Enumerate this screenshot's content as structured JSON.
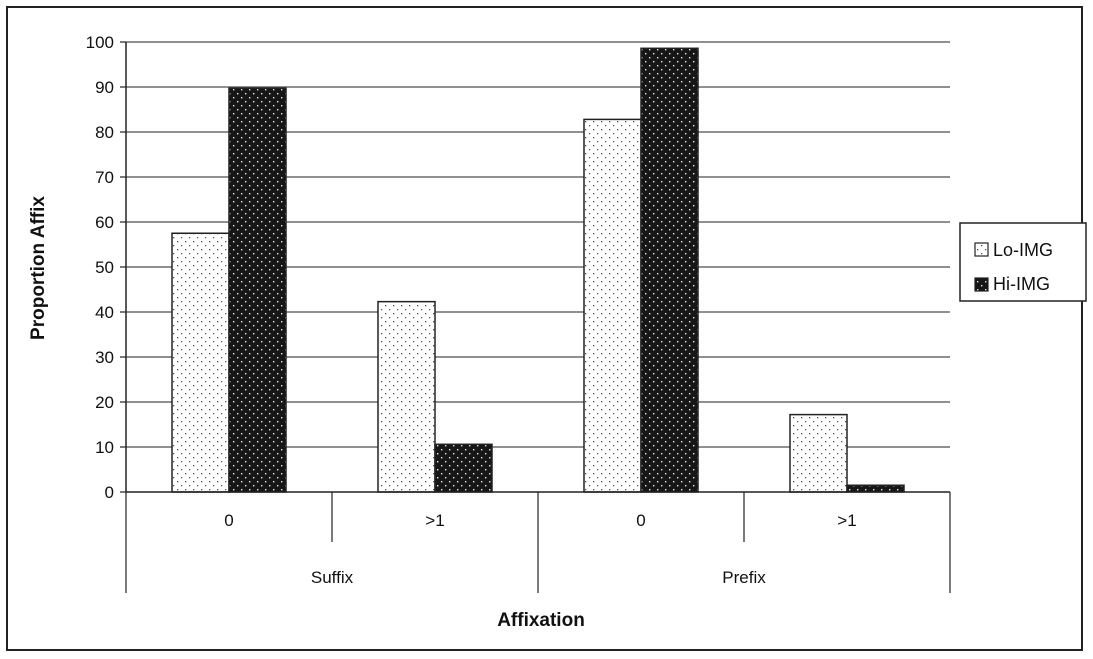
{
  "chart_data": {
    "type": "bar",
    "title": "",
    "xlabel": "Affixation",
    "ylabel": "Proportion Affix",
    "ylim": [
      0,
      100
    ],
    "yticks": [
      0,
      10,
      20,
      30,
      40,
      50,
      60,
      70,
      80,
      90,
      100
    ],
    "grid": true,
    "legend_position": "right",
    "categories": [
      "0",
      ">1",
      "0",
      ">1"
    ],
    "groups": [
      {
        "label": "Suffix",
        "categories": [
          "0",
          ">1"
        ]
      },
      {
        "label": "Prefix",
        "categories": [
          "0",
          ">1"
        ]
      }
    ],
    "series": [
      {
        "name": "Lo-IMG",
        "values": [
          57.5,
          42.3,
          82.8,
          17.2
        ],
        "pattern": "light-dots",
        "color": "#ffffff"
      },
      {
        "name": "Hi-IMG",
        "values": [
          89.7,
          10.6,
          98.6,
          1.5
        ],
        "pattern": "dark-dots",
        "color": "#111111"
      }
    ]
  }
}
